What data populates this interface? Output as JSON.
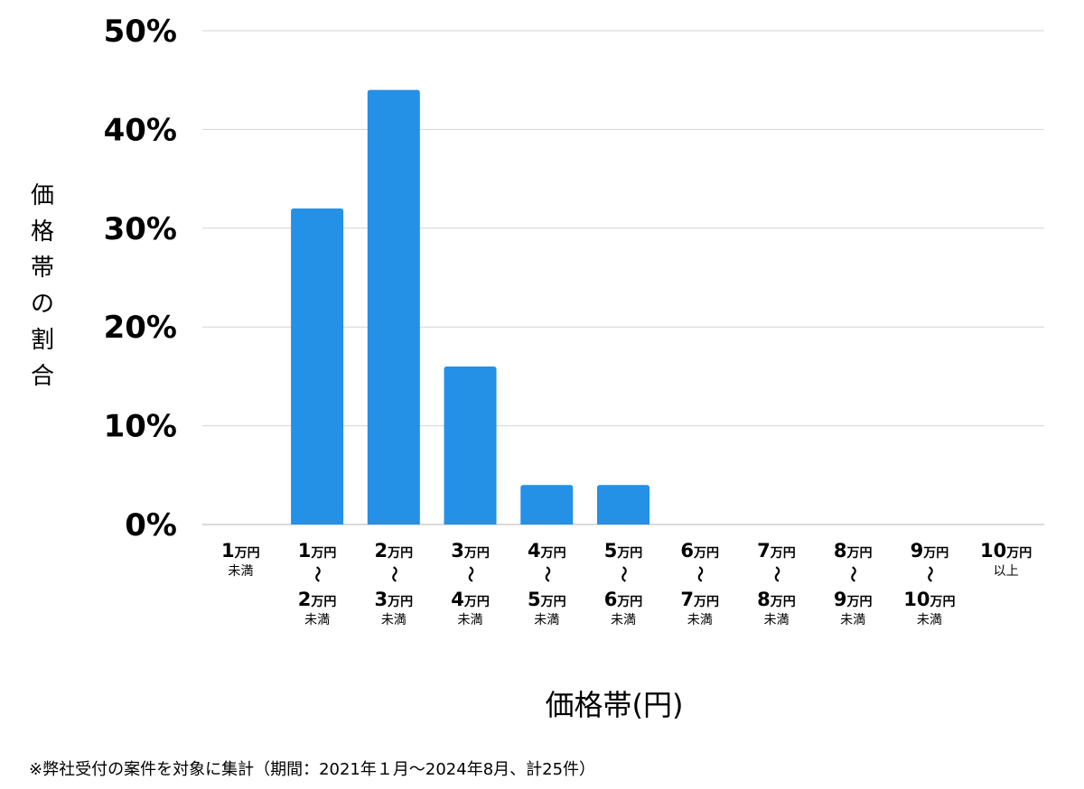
{
  "chart_data": {
    "type": "bar",
    "ylabel": "価格帯の割合",
    "xlabel": "価格帯(円)",
    "ylim": [
      0,
      50
    ],
    "yticks": [
      "0%",
      "10%",
      "20%",
      "30%",
      "40%",
      "50%"
    ],
    "grid": true,
    "bar_color": "#2490e6",
    "categories": [
      {
        "lines": [
          {
            "num": "1",
            "unit": "万円"
          }
        ],
        "note": "未満"
      },
      {
        "lines": [
          {
            "num": "1",
            "unit": "万円"
          },
          {
            "num": "2",
            "unit": "万円"
          }
        ],
        "note": "未満"
      },
      {
        "lines": [
          {
            "num": "2",
            "unit": "万円"
          },
          {
            "num": "3",
            "unit": "万円"
          }
        ],
        "note": "未満"
      },
      {
        "lines": [
          {
            "num": "3",
            "unit": "万円"
          },
          {
            "num": "4",
            "unit": "万円"
          }
        ],
        "note": "未満"
      },
      {
        "lines": [
          {
            "num": "4",
            "unit": "万円"
          },
          {
            "num": "5",
            "unit": "万円"
          }
        ],
        "note": "未満"
      },
      {
        "lines": [
          {
            "num": "5",
            "unit": "万円"
          },
          {
            "num": "6",
            "unit": "万円"
          }
        ],
        "note": "未満"
      },
      {
        "lines": [
          {
            "num": "6",
            "unit": "万円"
          },
          {
            "num": "7",
            "unit": "万円"
          }
        ],
        "note": "未満"
      },
      {
        "lines": [
          {
            "num": "7",
            "unit": "万円"
          },
          {
            "num": "8",
            "unit": "万円"
          }
        ],
        "note": "未満"
      },
      {
        "lines": [
          {
            "num": "8",
            "unit": "万円"
          },
          {
            "num": "9",
            "unit": "万円"
          }
        ],
        "note": "未満"
      },
      {
        "lines": [
          {
            "num": "9",
            "unit": "万円"
          },
          {
            "num": "10",
            "unit": "万円"
          }
        ],
        "note": "未満"
      },
      {
        "lines": [
          {
            "num": "10",
            "unit": "万円"
          }
        ],
        "note": "以上"
      }
    ],
    "range_mark": "〜",
    "values": [
      0,
      32,
      44,
      16,
      4,
      4,
      0,
      0,
      0,
      0,
      0
    ]
  },
  "footnote": "※弊社受付の案件を対象に集計（期間：2021年１月〜2024年8月、計25件）"
}
